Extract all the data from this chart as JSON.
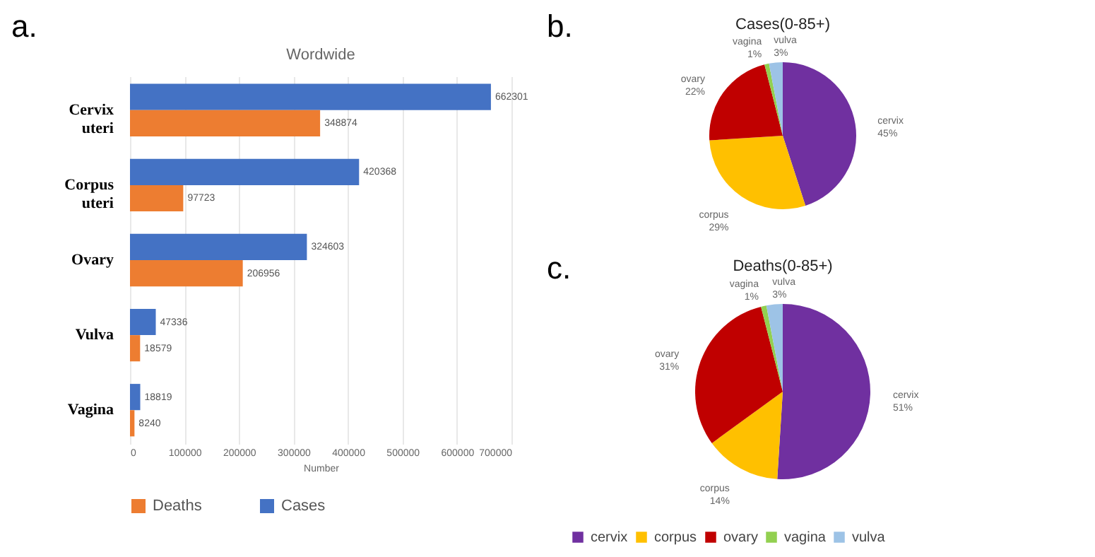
{
  "chart_data": [
    {
      "type": "bar",
      "orientation": "horizontal",
      "title": "Wordwide",
      "xlabel": "Number",
      "annotations": [
        "a."
      ],
      "categories": [
        "Cervix uteri",
        "Corpus uteri",
        "Ovary",
        "Vulva",
        "Vagina"
      ],
      "series": [
        {
          "name": "Cases",
          "color": "#4472c4",
          "values": [
            662301,
            420368,
            324603,
            47336,
            18819
          ]
        },
        {
          "name": "Deaths",
          "color": "#ed7d31",
          "values": [
            348874,
            97723,
            206956,
            18579,
            8240
          ]
        }
      ],
      "xlim": [
        0,
        700000
      ],
      "xticks": [
        0,
        100000,
        200000,
        300000,
        400000,
        500000,
        600000,
        700000
      ],
      "grid": "x",
      "legend": "bottom",
      "data_labels": true
    },
    {
      "type": "pie",
      "title": "Cases(0-85+)",
      "annotations": [
        "b."
      ],
      "categories": [
        "cervix",
        "corpus",
        "ovary",
        "vagina",
        "vulva"
      ],
      "values": [
        45,
        29,
        22,
        1,
        3
      ],
      "colors": [
        "#7030a0",
        "#ffc000",
        "#c00000",
        "#92d050",
        "#9dc3e6"
      ],
      "value_labels": [
        "45%",
        "29%",
        "22%",
        "1%",
        "3%"
      ],
      "legend": false
    },
    {
      "type": "pie",
      "title": "Deaths(0-85+)",
      "annotations": [
        "c."
      ],
      "categories": [
        "cervix",
        "corpus",
        "ovary",
        "vagina",
        "vulva"
      ],
      "values": [
        51,
        14,
        31,
        1,
        3
      ],
      "colors": [
        "#7030a0",
        "#ffc000",
        "#c00000",
        "#92d050",
        "#9dc3e6"
      ],
      "value_labels": [
        "51%",
        "14%",
        "31%",
        "1%",
        "3%"
      ],
      "legend": "bottom"
    }
  ]
}
